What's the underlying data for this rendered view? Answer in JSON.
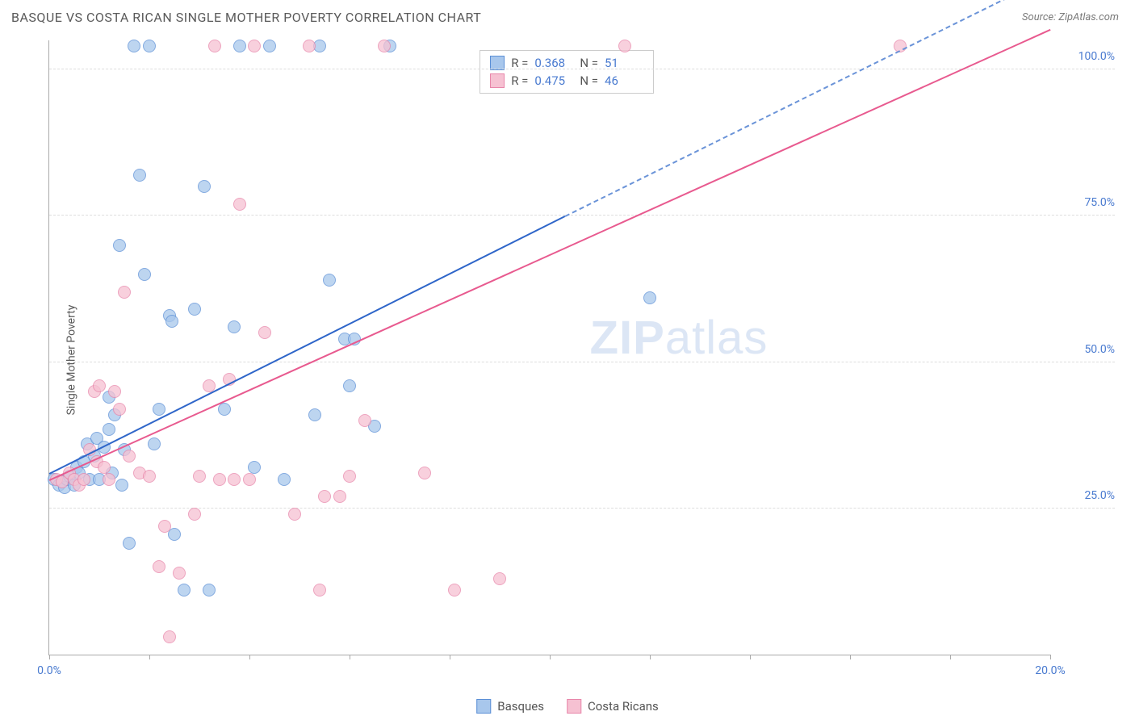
{
  "header": {
    "title": "BASQUE VS COSTA RICAN SINGLE MOTHER POVERTY CORRELATION CHART",
    "source": "Source: ZipAtlas.com"
  },
  "chart": {
    "type": "scatter",
    "y_label": "Single Mother Poverty",
    "xlim": [
      0,
      20
    ],
    "ylim": [
      0,
      105
    ],
    "x_ticks": [
      0,
      2,
      4,
      6,
      8,
      10,
      12,
      14,
      16,
      18,
      20
    ],
    "x_tick_labels_shown": {
      "0": "0.0%",
      "20": "20.0%"
    },
    "y_ticks": [
      25,
      50,
      75,
      100
    ],
    "y_tick_labels": [
      "25.0%",
      "50.0%",
      "75.0%",
      "100.0%"
    ],
    "background_color": "#ffffff",
    "grid_color": "#dddddd",
    "axis_color": "#aaaaaa",
    "watermark": {
      "text_bold": "ZIP",
      "text_light": "atlas",
      "color": "#dce6f5"
    },
    "series": [
      {
        "name": "Basques",
        "marker_color_fill": "#a8c7ec",
        "marker_color_stroke": "#5b8fd6",
        "marker_radius": 8,
        "trend_color": "#2f66c9",
        "trend_dash_color": "#6a93d8",
        "R": "0.368",
        "N": "51",
        "trend": {
          "x0": 0,
          "y0": 31,
          "x1_solid": 10.3,
          "y1_solid": 75,
          "x1_dash": 20,
          "y1_dash": 116
        },
        "points": [
          [
            0.1,
            30
          ],
          [
            0.2,
            29
          ],
          [
            0.3,
            28.5
          ],
          [
            0.35,
            30
          ],
          [
            0.4,
            30.5
          ],
          [
            0.5,
            29
          ],
          [
            0.55,
            32
          ],
          [
            0.6,
            31
          ],
          [
            0.7,
            33
          ],
          [
            0.75,
            36
          ],
          [
            0.8,
            30
          ],
          [
            0.9,
            34
          ],
          [
            0.95,
            37
          ],
          [
            1.0,
            30
          ],
          [
            1.1,
            35.5
          ],
          [
            1.2,
            38.5
          ],
          [
            1.2,
            44
          ],
          [
            1.25,
            31
          ],
          [
            1.3,
            41
          ],
          [
            1.4,
            70
          ],
          [
            1.45,
            29
          ],
          [
            1.5,
            35
          ],
          [
            1.6,
            19
          ],
          [
            1.7,
            104
          ],
          [
            1.8,
            82
          ],
          [
            1.9,
            65
          ],
          [
            2.0,
            104
          ],
          [
            2.1,
            36
          ],
          [
            2.2,
            42
          ],
          [
            2.4,
            58
          ],
          [
            2.45,
            57
          ],
          [
            2.5,
            20.5
          ],
          [
            2.7,
            11
          ],
          [
            2.9,
            59
          ],
          [
            3.1,
            80
          ],
          [
            3.2,
            11
          ],
          [
            3.5,
            42
          ],
          [
            3.7,
            56
          ],
          [
            3.8,
            104
          ],
          [
            4.1,
            32
          ],
          [
            4.4,
            104
          ],
          [
            4.7,
            30
          ],
          [
            5.3,
            41
          ],
          [
            5.4,
            104
          ],
          [
            5.6,
            64
          ],
          [
            5.9,
            54
          ],
          [
            6.0,
            46
          ],
          [
            6.1,
            54
          ],
          [
            6.5,
            39
          ],
          [
            6.8,
            104
          ],
          [
            12.0,
            61
          ]
        ]
      },
      {
        "name": "Costa Ricans",
        "marker_color_fill": "#f6c1d2",
        "marker_color_stroke": "#e886aa",
        "marker_radius": 8,
        "trend_color": "#e85a8f",
        "R": "0.475",
        "N": "46",
        "trend": {
          "x0": 0,
          "y0": 30,
          "x1_solid": 20,
          "y1_solid": 107
        },
        "points": [
          [
            0.15,
            30
          ],
          [
            0.25,
            29.5
          ],
          [
            0.4,
            31
          ],
          [
            0.5,
            30
          ],
          [
            0.6,
            29
          ],
          [
            0.7,
            30
          ],
          [
            0.8,
            35
          ],
          [
            0.9,
            45
          ],
          [
            0.95,
            33
          ],
          [
            1.0,
            46
          ],
          [
            1.1,
            32
          ],
          [
            1.2,
            30
          ],
          [
            1.3,
            45
          ],
          [
            1.4,
            42
          ],
          [
            1.5,
            62
          ],
          [
            1.6,
            34
          ],
          [
            1.8,
            31
          ],
          [
            2.0,
            30.5
          ],
          [
            2.2,
            15
          ],
          [
            2.3,
            22
          ],
          [
            2.4,
            3
          ],
          [
            2.6,
            14
          ],
          [
            2.9,
            24
          ],
          [
            3.0,
            30.5
          ],
          [
            3.2,
            46
          ],
          [
            3.3,
            104
          ],
          [
            3.4,
            30
          ],
          [
            3.6,
            47
          ],
          [
            3.7,
            30
          ],
          [
            3.8,
            77
          ],
          [
            4.0,
            30
          ],
          [
            4.1,
            104
          ],
          [
            4.3,
            55
          ],
          [
            4.9,
            24
          ],
          [
            5.2,
            104
          ],
          [
            5.4,
            11
          ],
          [
            5.5,
            27
          ],
          [
            5.8,
            27
          ],
          [
            6.0,
            30.5
          ],
          [
            6.3,
            40
          ],
          [
            6.7,
            104
          ],
          [
            7.5,
            31
          ],
          [
            8.1,
            11
          ],
          [
            9.0,
            13
          ],
          [
            11.5,
            104
          ],
          [
            17.0,
            104
          ]
        ]
      }
    ]
  },
  "legend": {
    "bottom": [
      {
        "label": "Basques",
        "fill": "#a8c7ec",
        "stroke": "#5b8fd6"
      },
      {
        "label": "Costa Ricans",
        "fill": "#f6c1d2",
        "stroke": "#e886aa"
      }
    ]
  }
}
